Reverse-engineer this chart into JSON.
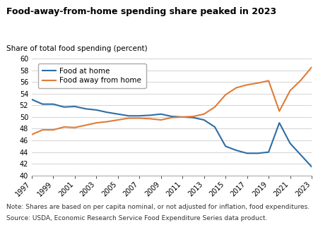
{
  "title": "Food-away-from-home spending share peaked in 2023",
  "ylabel": "Share of total food spending (percent)",
  "note": "Note: Shares are based on per capita nominal, or not adjusted for inflation, food expenditures.",
  "source": "Source: USDA, Economic Research Service Food Expenditure Series data product.",
  "years": [
    1997,
    1998,
    1999,
    2000,
    2001,
    2002,
    2003,
    2004,
    2005,
    2006,
    2007,
    2008,
    2009,
    2010,
    2011,
    2012,
    2013,
    2014,
    2015,
    2016,
    2017,
    2018,
    2019,
    2020,
    2021,
    2022,
    2023
  ],
  "food_at_home": [
    53.0,
    52.2,
    52.2,
    51.7,
    51.8,
    51.4,
    51.2,
    50.8,
    50.5,
    50.2,
    50.2,
    50.3,
    50.5,
    50.1,
    50.0,
    49.9,
    49.5,
    48.3,
    45.0,
    44.3,
    43.8,
    43.8,
    44.0,
    49.0,
    45.5,
    43.5,
    41.5
  ],
  "food_away_from_home": [
    47.0,
    47.8,
    47.8,
    48.3,
    48.2,
    48.6,
    49.0,
    49.2,
    49.5,
    49.8,
    49.8,
    49.7,
    49.5,
    49.9,
    50.0,
    50.1,
    50.5,
    51.7,
    53.8,
    55.0,
    55.5,
    55.8,
    56.2,
    51.0,
    54.5,
    56.3,
    58.5
  ],
  "fah_color": "#2e6da4",
  "fafh_color": "#e07b39",
  "ylim": [
    40,
    60
  ],
  "yticks": [
    40,
    42,
    44,
    46,
    48,
    50,
    52,
    54,
    56,
    58,
    60
  ],
  "xtick_years": [
    1997,
    1999,
    2001,
    2003,
    2005,
    2007,
    2009,
    2011,
    2013,
    2015,
    2017,
    2019,
    2021,
    2023
  ],
  "legend_labels": [
    "Food at home",
    "Food away from home"
  ],
  "background_color": "#ffffff",
  "grid_color": "#cccccc"
}
